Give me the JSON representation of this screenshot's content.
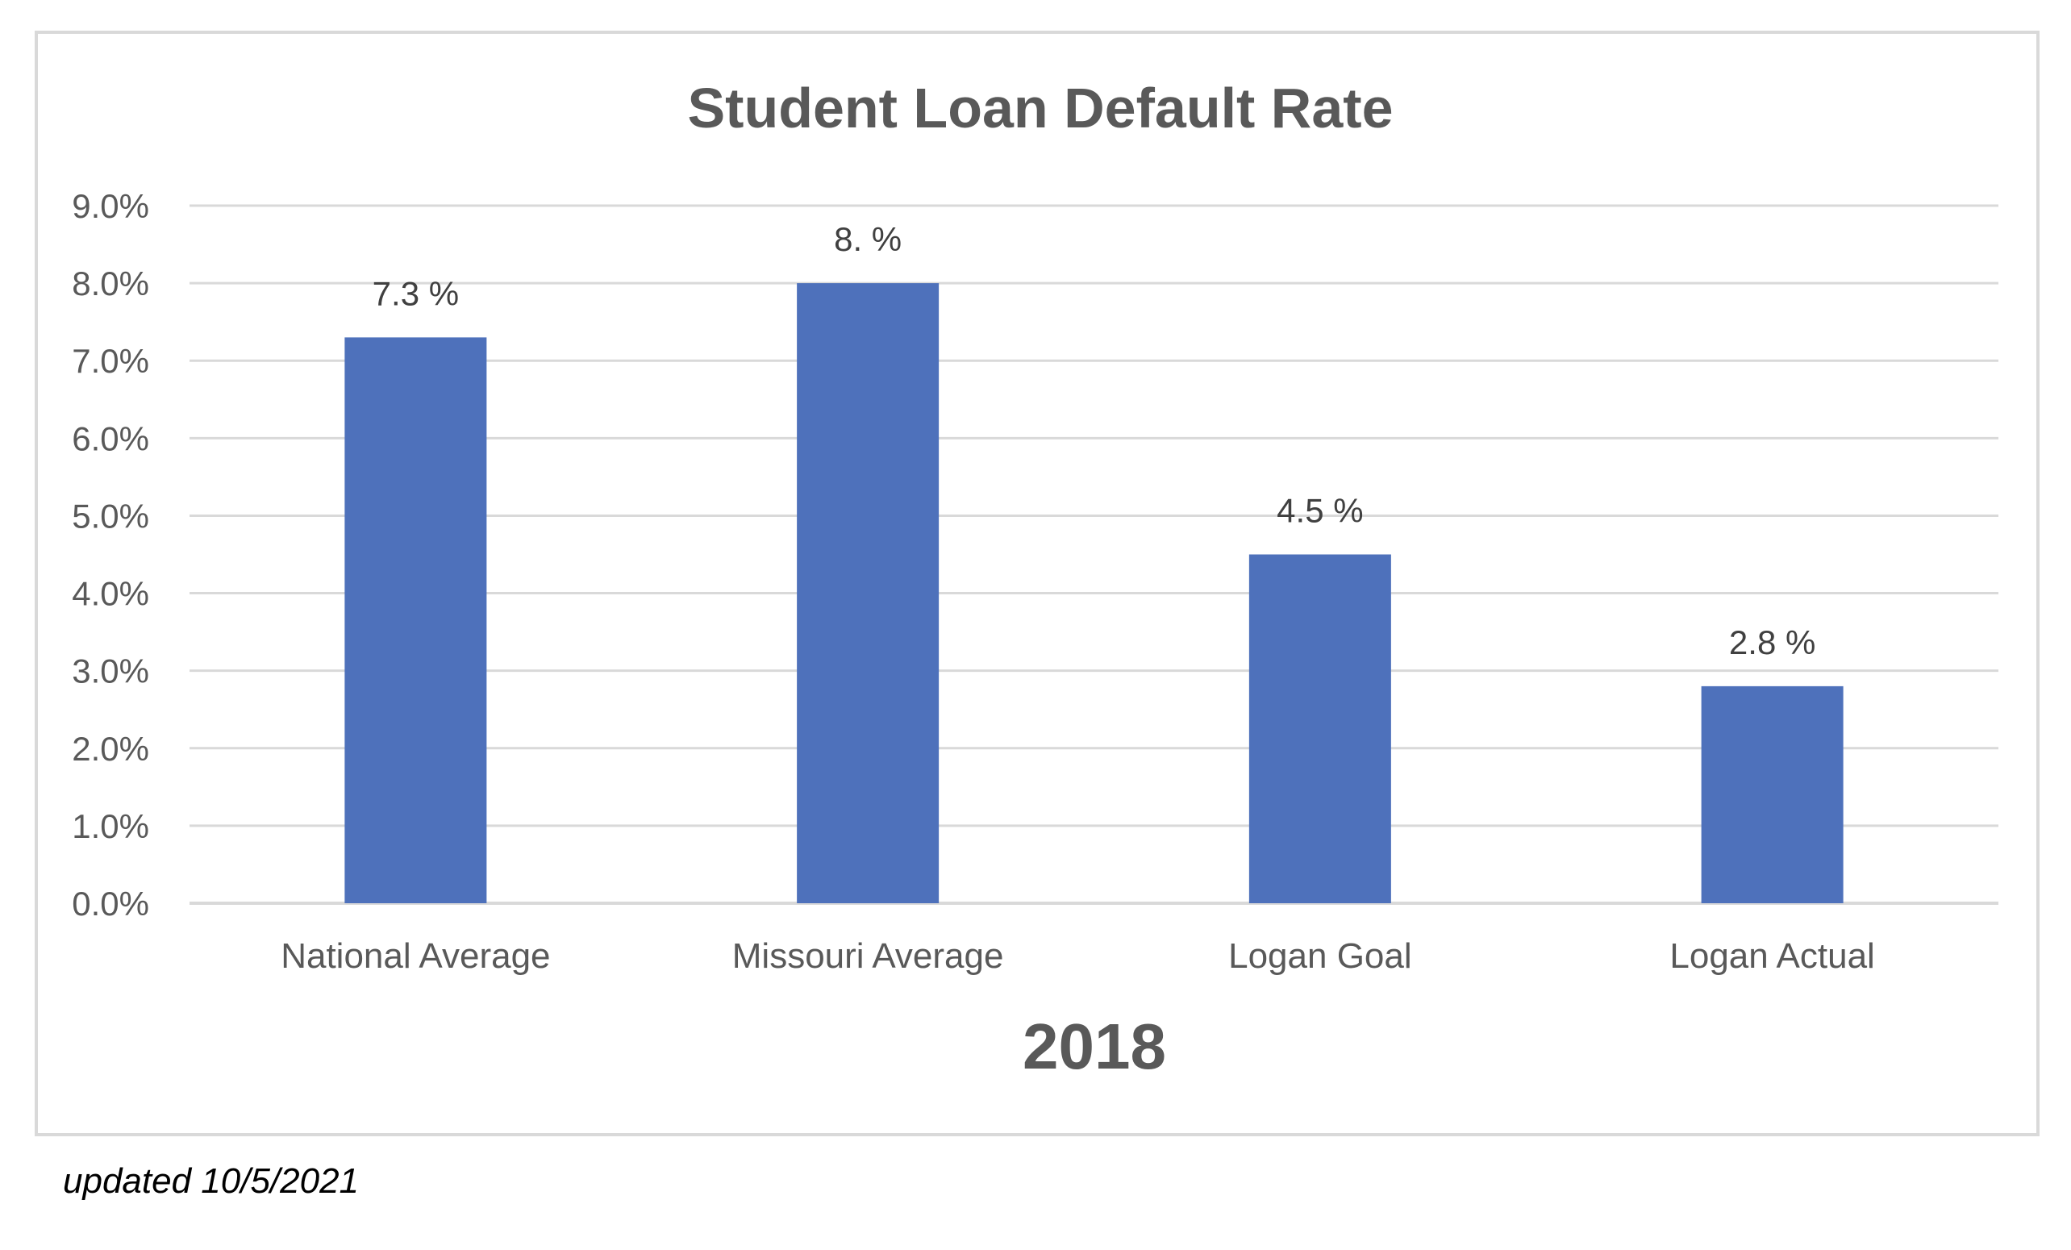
{
  "chart_data": {
    "type": "bar",
    "title": "Student Loan Default Rate",
    "xlabel": "2018",
    "ylabel": "",
    "categories": [
      "National Average",
      "Missouri Average",
      "Logan Goal",
      "Logan Actual"
    ],
    "values": [
      7.3,
      8.0,
      4.5,
      2.8
    ],
    "data_labels": [
      "7.3 %",
      "8. %",
      "4.5 %",
      "2.8 %"
    ],
    "y_ticks": [
      "0.0%",
      "1.0%",
      "2.0%",
      "3.0%",
      "4.0%",
      "5.0%",
      "6.0%",
      "7.0%",
      "8.0%",
      "9.0%"
    ],
    "ylim": [
      0,
      9
    ],
    "grid": true,
    "legend": "none",
    "bar_color": "#4e71bb",
    "gridline_color": "#d9d9d9"
  },
  "footnote": "updated 10/5/2021"
}
